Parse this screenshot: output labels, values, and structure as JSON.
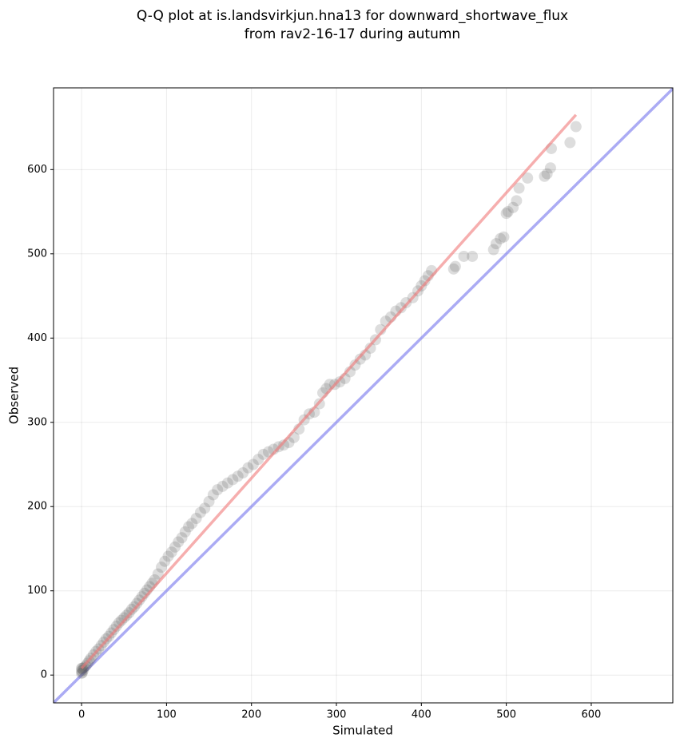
{
  "chart_data": {
    "type": "scatter",
    "title": [
      "Q-Q plot at is.landsvirkjun.hna13 for downward_shortwave_flux",
      "from rav2-16-17 during autumn"
    ],
    "x_label": "Simulated",
    "y_label": "Observed",
    "xlim": [
      -33,
      696
    ],
    "ylim": [
      -33,
      697
    ],
    "xticks": [
      0,
      100,
      200,
      300,
      400,
      500,
      600
    ],
    "yticks": [
      0,
      100,
      200,
      300,
      400,
      500,
      600
    ],
    "grid": true,
    "series": [
      {
        "color": "#555555",
        "x": [
          0,
          0,
          0,
          1,
          1,
          2,
          3,
          5,
          7,
          9,
          11,
          14,
          17,
          20,
          23,
          26,
          29,
          32,
          35,
          38,
          41,
          44,
          47,
          50,
          53,
          56,
          59,
          62,
          65,
          68,
          71,
          74,
          77,
          80,
          83,
          86,
          90,
          94,
          98,
          102,
          106,
          110,
          114,
          118,
          122,
          126,
          130,
          135,
          140,
          145,
          150,
          155,
          160,
          166,
          172,
          178,
          184,
          190,
          196,
          202,
          208,
          214,
          220,
          226,
          232,
          238,
          244,
          250,
          256,
          262,
          268,
          274,
          280,
          284,
          288,
          292,
          298,
          304,
          310,
          316,
          322,
          328,
          334,
          340,
          346,
          352,
          358,
          364,
          370,
          376,
          382,
          390,
          396,
          400,
          404,
          408,
          412,
          438,
          440,
          450,
          460,
          485,
          488,
          493,
          497,
          500,
          502,
          508,
          512,
          515,
          525,
          545,
          548,
          552,
          553,
          575,
          582
        ],
        "y": [
          2,
          5,
          8,
          3,
          8,
          6,
          9,
          11,
          14,
          17,
          20,
          24,
          28,
          31,
          35,
          39,
          43,
          46,
          50,
          54,
          58,
          62,
          65,
          68,
          71,
          74,
          78,
          81,
          85,
          89,
          93,
          97,
          101,
          105,
          109,
          113,
          120,
          128,
          135,
          141,
          146,
          152,
          158,
          163,
          170,
          176,
          180,
          186,
          193,
          198,
          206,
          214,
          220,
          224,
          228,
          232,
          236,
          240,
          246,
          250,
          256,
          262,
          265,
          268,
          271,
          273,
          276,
          282,
          292,
          303,
          310,
          312,
          322,
          335,
          340,
          345,
          345,
          348,
          352,
          360,
          368,
          375,
          380,
          388,
          398,
          410,
          420,
          425,
          432,
          436,
          442,
          448,
          456,
          462,
          468,
          474,
          480,
          482,
          485,
          497,
          497,
          505,
          512,
          518,
          520,
          548,
          550,
          555,
          563,
          578,
          590,
          592,
          595,
          602,
          625,
          632,
          651
        ]
      }
    ],
    "fit_line": {
      "color": "#f07878",
      "x": [
        0,
        582
      ],
      "y": [
        8,
        665
      ]
    },
    "reference_line": {
      "color": "#8888f0"
    }
  }
}
